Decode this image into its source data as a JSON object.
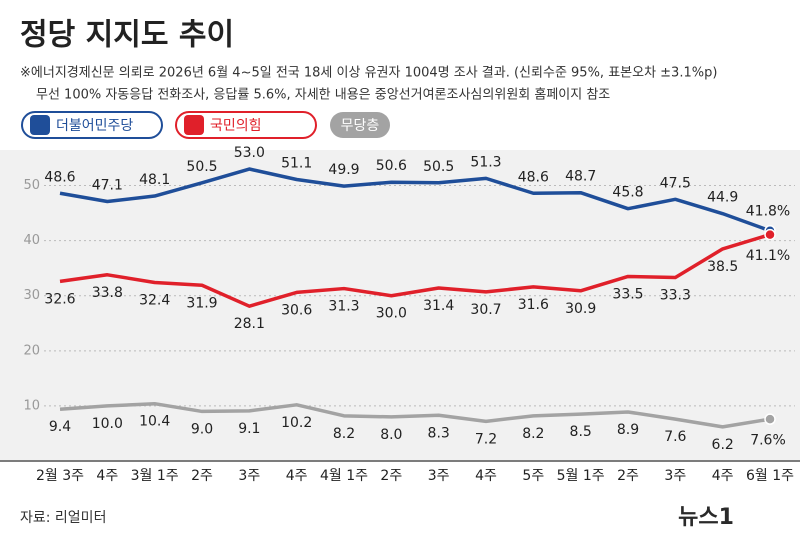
{
  "chart_data": {
    "type": "line",
    "title": "정당 지지도 추이",
    "notes": [
      "※에너지경제신문 의뢰로 2026년 6월 4~5일 전국 18세 이상 유권자 1004명 조사 결과. (신뢰수준 95%, 표본오차 ±3.1%p)",
      "무선 100% 자동응답 전화조사, 응답률 5.6%, 자세한 내용은 중앙선거여론조사심의위원회 홈페이지 참조"
    ],
    "source": "자료: 리얼미터",
    "brand": "뉴스1",
    "categories": [
      "2월 3주",
      "4주",
      "3월 1주",
      "2주",
      "3주",
      "4주",
      "4월 1주",
      "2주",
      "3주",
      "4주",
      "5주",
      "5월 1주",
      "2주",
      "3주",
      "4주",
      "6월 1주"
    ],
    "series": [
      {
        "name": "더불어민주당",
        "color": "#1f4e99",
        "label_pos": "above",
        "values": [
          48.6,
          47.1,
          48.1,
          50.5,
          53.0,
          51.1,
          49.9,
          50.6,
          50.5,
          51.3,
          48.6,
          48.7,
          45.8,
          47.5,
          44.9,
          41.8
        ],
        "value_labels": [
          "48.6",
          "47.1",
          "48.1",
          "50.5",
          "53.0",
          "51.1",
          "49.9",
          "50.6",
          "50.5",
          "51.3",
          "48.6",
          "48.7",
          "45.8",
          "47.5",
          "44.9",
          "41.8%"
        ]
      },
      {
        "name": "국민의힘",
        "color": "#e0202a",
        "label_pos": "below",
        "values": [
          32.6,
          33.8,
          32.4,
          31.9,
          28.1,
          30.6,
          31.3,
          30.0,
          31.4,
          30.7,
          31.6,
          30.9,
          33.5,
          33.3,
          38.5,
          41.1
        ],
        "value_labels": [
          "32.6",
          "33.8",
          "32.4",
          "31.9",
          "28.1",
          "30.6",
          "31.3",
          "30.0",
          "31.4",
          "30.7",
          "31.6",
          "30.9",
          "33.5",
          "33.3",
          "38.5",
          "41.1%"
        ]
      },
      {
        "name": "무당층",
        "color": "#a3a3a3",
        "label_pos": "below",
        "values": [
          9.4,
          10.0,
          10.4,
          9.0,
          9.1,
          10.2,
          8.2,
          8.0,
          8.3,
          7.2,
          8.2,
          8.5,
          8.9,
          7.6,
          6.2,
          7.6
        ],
        "value_labels": [
          "9.4",
          "10.0",
          "10.4",
          "9.0",
          "9.1",
          "10.2",
          "8.2",
          "8.0",
          "8.3",
          "7.2",
          "8.2",
          "8.5",
          "8.9",
          "7.6",
          "6.2",
          "7.6%"
        ]
      }
    ],
    "ylim": [
      0,
      55
    ],
    "yticks": [
      10,
      20,
      30,
      40,
      50
    ],
    "grid": true
  }
}
